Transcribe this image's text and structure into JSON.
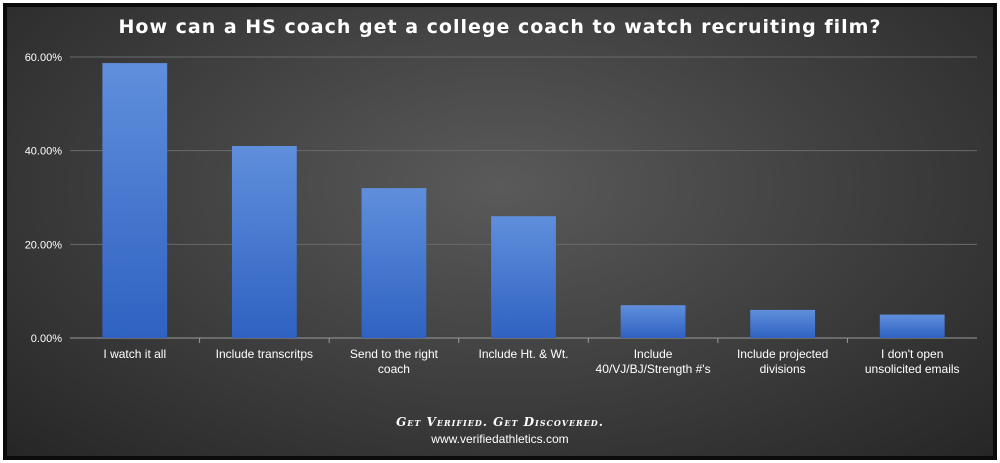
{
  "chart_data": {
    "type": "bar",
    "title": "How can a HS coach get a college coach to watch recruiting film?",
    "categories": [
      [
        "I watch it all"
      ],
      [
        "Include transcritps"
      ],
      [
        "Send to the right",
        "coach"
      ],
      [
        "Include Ht. & Wt."
      ],
      [
        "Include",
        "40/VJ/BJ/Strength #'s"
      ],
      [
        "Include projected",
        "divisions"
      ],
      [
        "I don't open",
        "unsolicited emails"
      ]
    ],
    "values": [
      58.7,
      41.0,
      32.0,
      26.0,
      7.0,
      6.0,
      5.0
    ],
    "yticks": [
      "0.00%",
      "20.00%",
      "40.00%",
      "60.00%"
    ],
    "ylim": [
      0,
      60
    ],
    "grid": true,
    "bar_color": "#4a7fd4"
  },
  "footer": {
    "tagline": "Get Verified. Get Discovered.",
    "url": "www.verifiedathletics.com"
  }
}
